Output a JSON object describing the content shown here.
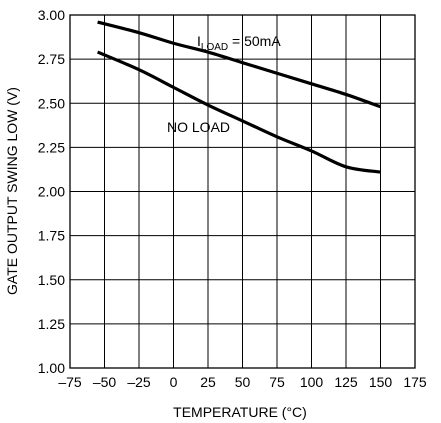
{
  "chart_data": {
    "type": "line",
    "xlabel": "TEMPERATURE (°C)",
    "ylabel": "GATE OUTPUT SWING LOW (V)",
    "xlim": [
      -75,
      175
    ],
    "ylim": [
      1.0,
      3.0
    ],
    "x_ticks": [
      -75,
      -50,
      -25,
      0,
      25,
      50,
      75,
      100,
      125,
      150,
      175
    ],
    "x_tick_labels": [
      "–75",
      "–50",
      "–25",
      "0",
      "25",
      "50",
      "75",
      "100",
      "125",
      "150",
      "175"
    ],
    "y_ticks": [
      1.0,
      1.25,
      1.5,
      1.75,
      2.0,
      2.25,
      2.5,
      2.75,
      3.0
    ],
    "y_tick_labels": [
      "1.00",
      "1.25",
      "1.50",
      "1.75",
      "2.00",
      "2.25",
      "2.50",
      "2.75",
      "3.00"
    ],
    "grid": true,
    "series": [
      {
        "name": "ILOAD = 50mA",
        "x": [
          -55,
          -25,
          0,
          25,
          50,
          75,
          100,
          125,
          150
        ],
        "y": [
          2.96,
          2.9,
          2.84,
          2.79,
          2.73,
          2.67,
          2.61,
          2.55,
          2.48
        ]
      },
      {
        "name": "NO LOAD",
        "x": [
          -55,
          -25,
          0,
          25,
          50,
          75,
          100,
          125,
          150
        ],
        "y": [
          2.79,
          2.69,
          2.59,
          2.49,
          2.4,
          2.31,
          2.23,
          2.14,
          2.11
        ]
      }
    ],
    "annotations": [
      {
        "main": "I",
        "sub": "LOAD",
        "rest": " = 50mA"
      },
      {
        "main": "NO LOAD"
      }
    ]
  }
}
